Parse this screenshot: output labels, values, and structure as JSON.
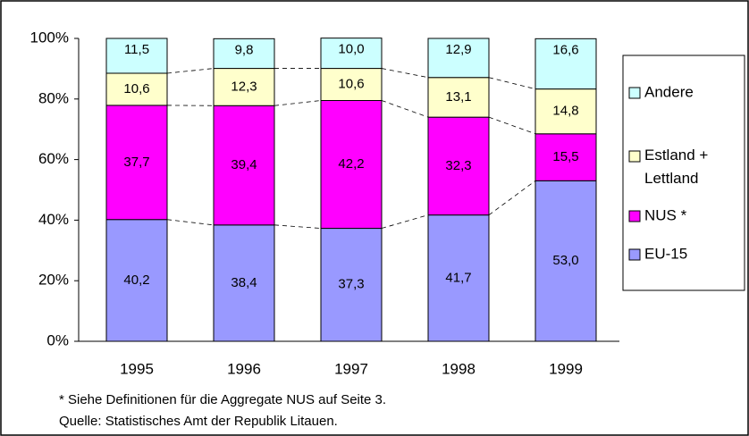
{
  "chart_data": {
    "type": "stacked_bar_percent",
    "categories": [
      "1995",
      "1996",
      "1997",
      "1998",
      "1999"
    ],
    "series": [
      {
        "name": "EU-15",
        "color": "#9999ff",
        "values": [
          40.2,
          38.4,
          37.3,
          41.7,
          53.0
        ],
        "value_labels": [
          "40,2",
          "38,4",
          "37,3",
          "41,7",
          "53,0"
        ]
      },
      {
        "name": "NUS *",
        "color": "#ff00ff",
        "values": [
          37.7,
          39.4,
          42.2,
          32.3,
          15.5
        ],
        "value_labels": [
          "37,7",
          "39,4",
          "42,2",
          "32,3",
          "15,5"
        ]
      },
      {
        "name": "Estland + Lettland",
        "color": "#ffffcc",
        "values": [
          10.6,
          12.3,
          10.6,
          13.1,
          14.8
        ],
        "value_labels": [
          "10,6",
          "12,3",
          "10,6",
          "13,1",
          "14,8"
        ]
      },
      {
        "name": "Andere",
        "color": "#ccffff",
        "values": [
          11.5,
          9.8,
          10.0,
          12.9,
          16.6
        ],
        "value_labels": [
          "11,5",
          "9,8",
          "10,0",
          "12,9",
          "16,6"
        ]
      }
    ],
    "ylim": [
      0,
      100
    ],
    "yticks": [
      {
        "value": 0,
        "label": "0%"
      },
      {
        "value": 20,
        "label": "20%"
      },
      {
        "value": 40,
        "label": "40%"
      },
      {
        "value": 60,
        "label": "60%"
      },
      {
        "value": 80,
        "label": "80%"
      },
      {
        "value": 100,
        "label": "100%"
      }
    ],
    "legend": "right",
    "footnotes": [
      "*  Siehe Definitionen für die Aggregate NUS auf Seite 3.",
      "Quelle: Statistisches Amt der Republik Litauen."
    ]
  }
}
